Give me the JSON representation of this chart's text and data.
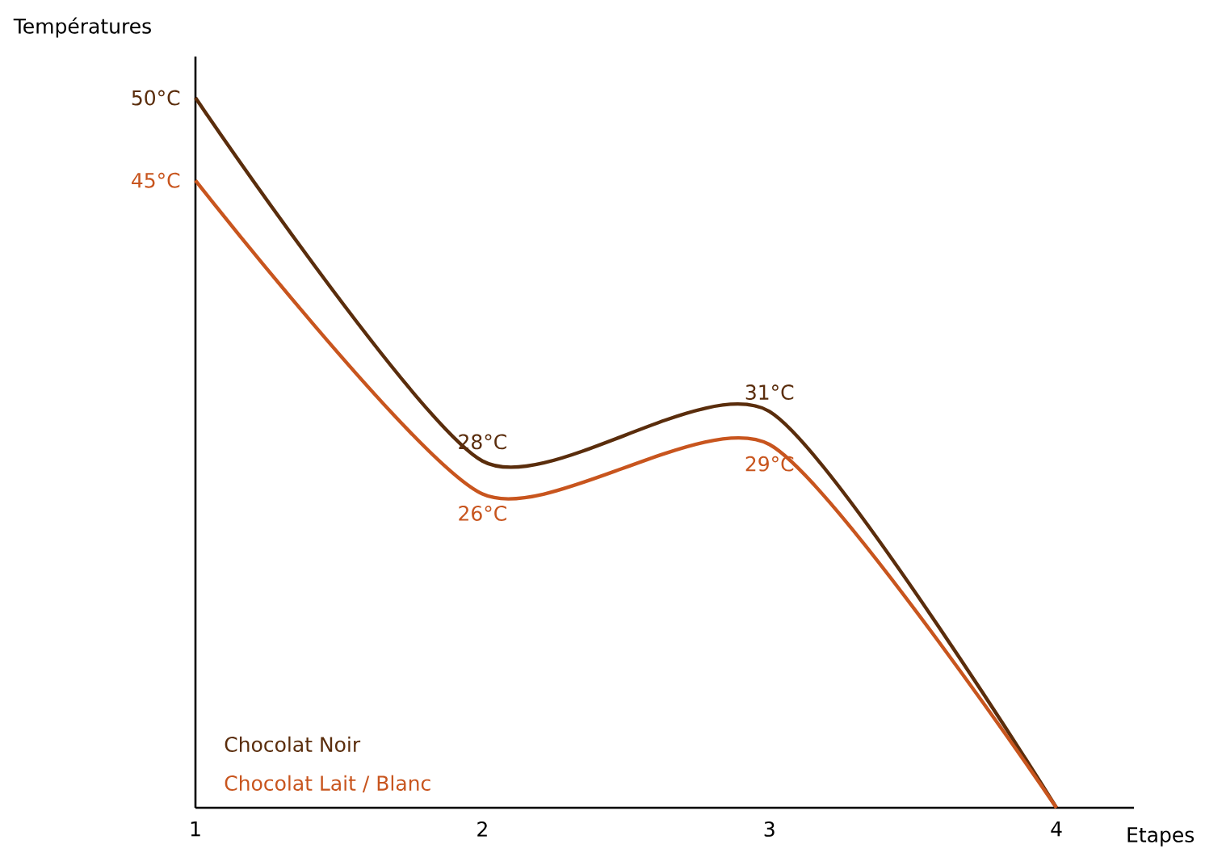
{
  "chart_data": {
    "type": "line",
    "ylim": [
      7,
      52.5
    ],
    "xlabel": "Etapes",
    "ylabel": "Températures",
    "categories": [
      "1",
      "2",
      "3",
      "4"
    ],
    "series": [
      {
        "name": "Chocolat Noir",
        "color": "#5a2d0c",
        "values": [
          50,
          28,
          31,
          7
        ],
        "value_labels": [
          "50°C",
          "28°C",
          "31°C",
          null
        ]
      },
      {
        "name": "Chocolat Lait / Blanc",
        "color": "#c8551e",
        "values": [
          45,
          26,
          29,
          7
        ],
        "value_labels": [
          "45°C",
          "26°C",
          "29°C",
          null
        ]
      }
    ],
    "legend": "bottom left",
    "grid": false,
    "marker": "none",
    "line_style": "solid"
  }
}
